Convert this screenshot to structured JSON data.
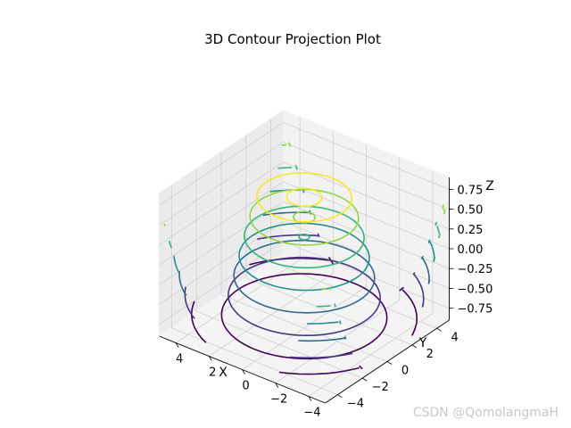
{
  "chart_data": {
    "type": "contour3d",
    "title": "3D Contour Projection Plot",
    "xlabel": "X",
    "ylabel": "Y",
    "zlabel": "Z",
    "xlim": [
      -5,
      5
    ],
    "ylim": [
      -5,
      5
    ],
    "zlim": [
      -0.9,
      0.9
    ],
    "x_ticks": [
      "−4",
      "−2",
      "0",
      "2",
      "4"
    ],
    "y_ticks": [
      "−4",
      "−2",
      "0",
      "2",
      "4"
    ],
    "z_ticks": [
      "0.75",
      "0.50",
      "0.25",
      "0.00",
      "−0.25",
      "−0.50",
      "−0.75"
    ],
    "grid": true,
    "colormap": "viridis",
    "surface_function": "z = sin(sqrt(x^2 + y^2))",
    "contour_levels": [
      -0.75,
      -0.5,
      -0.25,
      0.0,
      0.25,
      0.5,
      0.75
    ],
    "level_colors": [
      "#440154",
      "#443983",
      "#31688e",
      "#21918c",
      "#35b779",
      "#90d743",
      "#fde725"
    ],
    "projections": [
      "x-offset",
      "y-offset",
      "z-offset"
    ]
  },
  "watermark": "CSDN @QomolangmaH"
}
